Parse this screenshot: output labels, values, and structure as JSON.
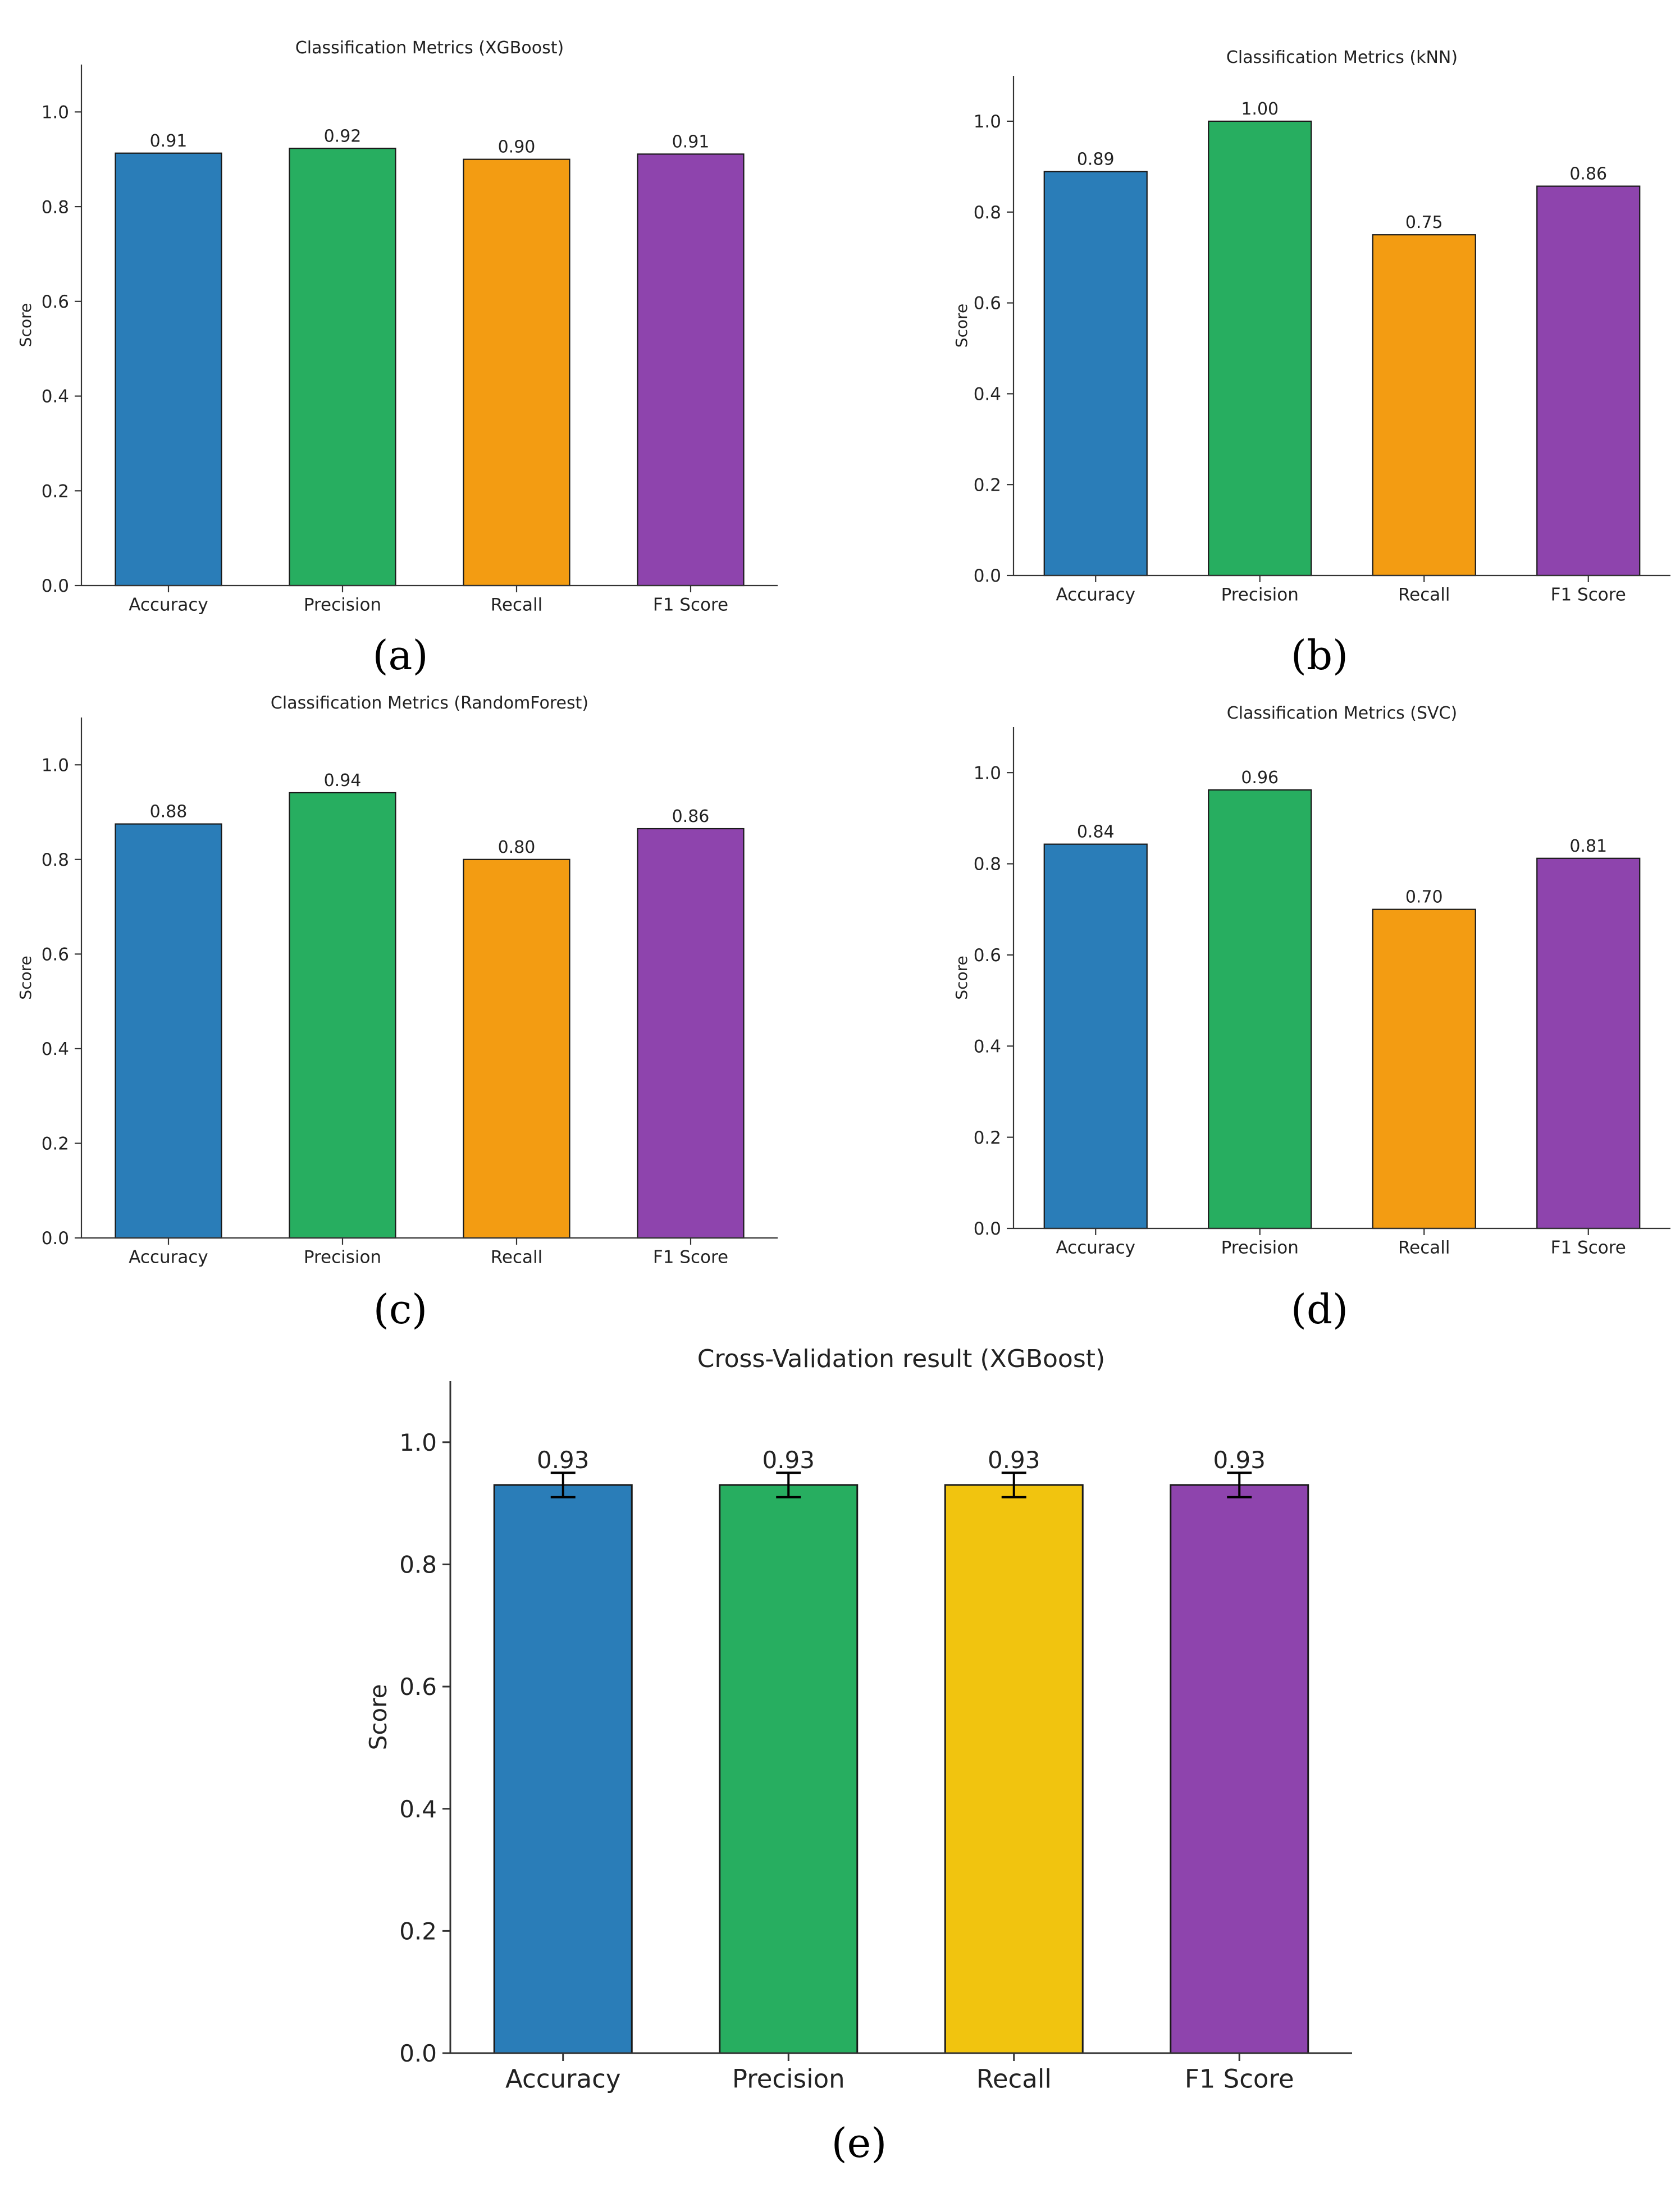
{
  "chart_data": [
    {
      "panel": "a",
      "caption": "(a)",
      "type": "bar",
      "title": "Classification Metrics (XGBoost)",
      "xlabel": "",
      "ylabel": "Score",
      "ylim": [
        0,
        1.1
      ],
      "yticks": [
        "0.0",
        "0.2",
        "0.4",
        "0.6",
        "0.8",
        "1.0"
      ],
      "categories": [
        "Accuracy",
        "Precision",
        "Recall",
        "F1 Score"
      ],
      "values": [
        0.913,
        0.923,
        0.9,
        0.911
      ],
      "value_labels": [
        "0.91",
        "0.92",
        "0.90",
        "0.91"
      ],
      "colors": [
        "#2a7db8",
        "#27ae60",
        "#f39c12",
        "#8e44ad"
      ],
      "grid": false,
      "error_bars": null
    },
    {
      "panel": "b",
      "caption": "(b)",
      "type": "bar",
      "title": "Classification Metrics (kNN)",
      "xlabel": "",
      "ylabel": "Score",
      "ylim": [
        0,
        1.1
      ],
      "yticks": [
        "0.0",
        "0.2",
        "0.4",
        "0.6",
        "0.8",
        "1.0"
      ],
      "categories": [
        "Accuracy",
        "Precision",
        "Recall",
        "F1 Score"
      ],
      "values": [
        0.889,
        1.0,
        0.75,
        0.857
      ],
      "value_labels": [
        "0.89",
        "1.00",
        "0.75",
        "0.86"
      ],
      "colors": [
        "#2a7db8",
        "#27ae60",
        "#f39c12",
        "#8e44ad"
      ],
      "grid": false,
      "error_bars": null
    },
    {
      "panel": "c",
      "caption": "(c)",
      "type": "bar",
      "title": "Classification Metrics (RandomForest)",
      "xlabel": "",
      "ylabel": "Score",
      "ylim": [
        0,
        1.1
      ],
      "yticks": [
        "0.0",
        "0.2",
        "0.4",
        "0.6",
        "0.8",
        "1.0"
      ],
      "categories": [
        "Accuracy",
        "Precision",
        "Recall",
        "F1 Score"
      ],
      "values": [
        0.875,
        0.941,
        0.8,
        0.865
      ],
      "value_labels": [
        "0.88",
        "0.94",
        "0.80",
        "0.86"
      ],
      "colors": [
        "#2a7db8",
        "#27ae60",
        "#f39c12",
        "#8e44ad"
      ],
      "grid": false,
      "error_bars": null
    },
    {
      "panel": "d",
      "caption": "(d)",
      "type": "bar",
      "title": "Classification Metrics (SVC)",
      "xlabel": "",
      "ylabel": "Score",
      "ylim": [
        0,
        1.1
      ],
      "yticks": [
        "0.0",
        "0.2",
        "0.4",
        "0.6",
        "0.8",
        "1.0"
      ],
      "categories": [
        "Accuracy",
        "Precision",
        "Recall",
        "F1 Score"
      ],
      "values": [
        0.843,
        0.962,
        0.7,
        0.812
      ],
      "value_labels": [
        "0.84",
        "0.96",
        "0.70",
        "0.81"
      ],
      "colors": [
        "#2a7db8",
        "#27ae60",
        "#f39c12",
        "#8e44ad"
      ],
      "grid": false,
      "error_bars": null
    },
    {
      "panel": "e",
      "caption": "(e)",
      "type": "bar",
      "title": "Cross-Validation result (XGBoost)",
      "xlabel": "",
      "ylabel": "Score",
      "ylim": [
        0,
        1.1
      ],
      "yticks": [
        "0.0",
        "0.2",
        "0.4",
        "0.6",
        "0.8",
        "1.0"
      ],
      "categories": [
        "Accuracy",
        "Precision",
        "Recall",
        "F1 Score"
      ],
      "values": [
        0.93,
        0.93,
        0.93,
        0.93
      ],
      "value_labels": [
        "0.93",
        "0.93",
        "0.93",
        "0.93"
      ],
      "colors": [
        "#2a7db8",
        "#27ae60",
        "#f1c40f",
        "#8e44ad"
      ],
      "grid": false,
      "error_bars": [
        0.02,
        0.02,
        0.02,
        0.02
      ]
    }
  ]
}
